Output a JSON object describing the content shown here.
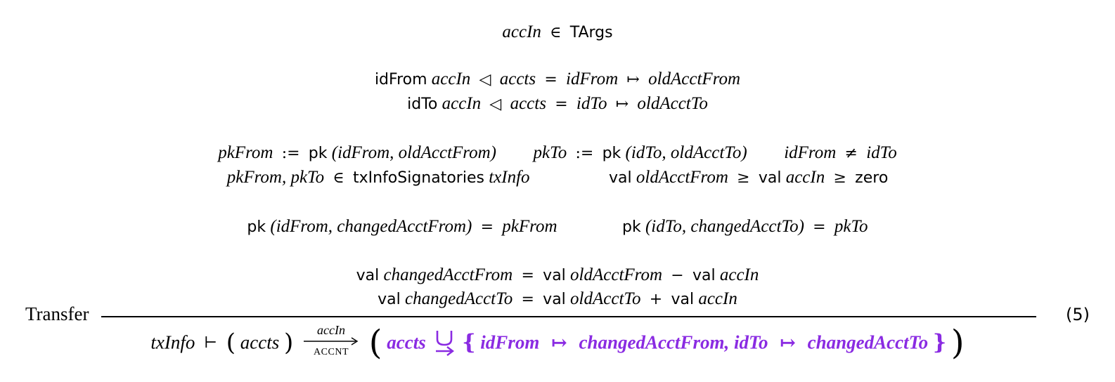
{
  "rule": {
    "label": "Transfer",
    "equation_number": "(5)"
  },
  "premises": {
    "targs": {
      "var": "accIn",
      "op": "∈",
      "type": "TArgs"
    },
    "lookup_from": {
      "fn": "idFrom",
      "arg": "accIn",
      "op": "◁",
      "map": "accts",
      "eq": "=",
      "key": "idFrom",
      "to": "↦",
      "val": "oldAcctFrom"
    },
    "lookup_to": {
      "fn": "idTo",
      "arg": "accIn",
      "op": "◁",
      "map": "accts",
      "eq": "=",
      "key": "idTo",
      "to": "↦",
      "val": "oldAcctTo"
    },
    "pk_from_def": {
      "lhs": "pkFrom",
      "assign": ":=",
      "fn": "pk",
      "args": "(idFrom, oldAcctFrom)"
    },
    "pk_to_def": {
      "lhs": "pkTo",
      "assign": ":=",
      "fn": "pk",
      "args": "(idTo, oldAcctTo)"
    },
    "neq": {
      "lhs": "idFrom",
      "op": "≠",
      "rhs": "idTo"
    },
    "signatories": {
      "lhs": "pkFrom, pkTo",
      "op": "∈",
      "fn": "txInfoSignatories",
      "arg": "txInfo"
    },
    "balance_check": {
      "val1": "val",
      "acct": "oldAcctFrom",
      "ge1": "≥",
      "val2": "val",
      "amt": "accIn",
      "ge2": "≥",
      "zero": "zero"
    },
    "pk_changed_from": {
      "fn": "pk",
      "args": "(idFrom, changedAcctFrom)",
      "eq": "=",
      "rhs": "pkFrom"
    },
    "pk_changed_to": {
      "fn": "pk",
      "args": "(idTo, changedAcctTo)",
      "eq": "=",
      "rhs": "pkTo"
    },
    "val_changed_from": {
      "val1": "val",
      "lhs": "changedAcctFrom",
      "eq": "=",
      "val2": "val",
      "acct": "oldAcctFrom",
      "op": "−",
      "val3": "val",
      "amt": "accIn"
    },
    "val_changed_to": {
      "val1": "val",
      "lhs": "changedAcctTo",
      "eq": "=",
      "val2": "val",
      "acct": "oldAcctTo",
      "op": "+",
      "val3": "val",
      "amt": "accIn"
    }
  },
  "conclusion": {
    "env": "txInfo",
    "turnstile": "⊢",
    "state_open": "(",
    "state": "accts",
    "state_close": ")",
    "arrow_top": "accIn",
    "arrow_bottom": "ACCNT",
    "result_open": "(",
    "result_map": "accts",
    "update_open": "{",
    "entry1_key": "idFrom",
    "entry1_to": "↦",
    "entry1_val": "changedAcctFrom,",
    "entry2_key": "idTo",
    "entry2_to": "↦",
    "entry2_val": "changedAcctTo",
    "update_close": "}",
    "result_close": ")",
    "highlight_color": "#8a2be2"
  }
}
